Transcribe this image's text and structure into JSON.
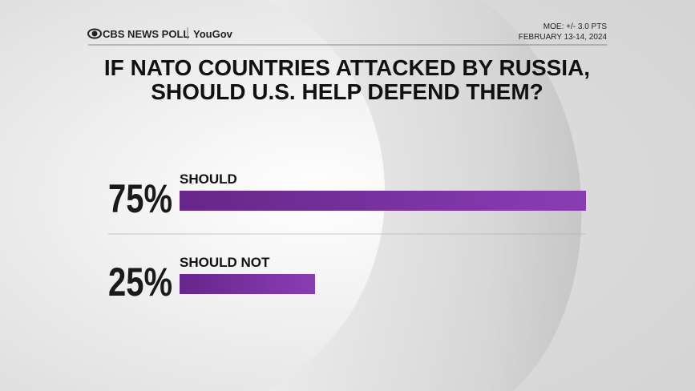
{
  "header": {
    "brand": "CBS NEWS POLL",
    "partner": "YouGov",
    "moe": "MOE: +/- 3.0 PTS",
    "dates": "FEBRUARY 13-14, 2024"
  },
  "chart_data": {
    "type": "bar",
    "orientation": "horizontal",
    "title_lines": [
      "IF NATO COUNTRIES ATTACKED BY RUSSIA,",
      "SHOULD U.S. HELP DEFEND THEM?"
    ],
    "categories": [
      "SHOULD",
      "SHOULD NOT"
    ],
    "values": [
      75,
      25
    ],
    "value_labels": [
      "75%",
      "25%"
    ],
    "color": "#8a3db3"
  }
}
